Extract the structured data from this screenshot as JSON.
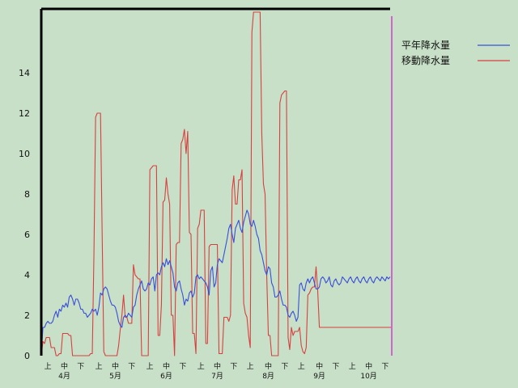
{
  "chart_data": {
    "type": "line",
    "title": "",
    "xlabel": "",
    "ylabel": "",
    "ylim": [
      0,
      16
    ],
    "yticks": [
      0,
      2,
      4,
      6,
      8,
      10,
      12,
      14
    ],
    "grid": false,
    "legend_position": "right",
    "colors": {
      "background": "#c8e0c8",
      "frame": "#000000",
      "marker": "#cc66cc"
    },
    "xticks": [
      {
        "label": "上",
        "i": 4
      },
      {
        "label": "中",
        "i": 14
      },
      {
        "label": "下",
        "i": 24
      },
      {
        "label": "上",
        "i": 35
      },
      {
        "label": "中",
        "i": 45
      },
      {
        "label": "下",
        "i": 55
      },
      {
        "label": "上",
        "i": 66
      },
      {
        "label": "中",
        "i": 76
      },
      {
        "label": "下",
        "i": 86
      },
      {
        "label": "上",
        "i": 97
      },
      {
        "label": "中",
        "i": 107
      },
      {
        "label": "下",
        "i": 117
      },
      {
        "label": "上",
        "i": 127
      },
      {
        "label": "中",
        "i": 138
      },
      {
        "label": "下",
        "i": 148
      },
      {
        "label": "上",
        "i": 158
      },
      {
        "label": "中",
        "i": 169
      },
      {
        "label": "下",
        "i": 179
      },
      {
        "label": "上",
        "i": 189
      },
      {
        "label": "中",
        "i": 199
      },
      {
        "label": "下",
        "i": 209
      }
    ],
    "months": [
      {
        "label": "4月",
        "i": 14
      },
      {
        "label": "5月",
        "i": 45
      },
      {
        "label": "6月",
        "i": 76
      },
      {
        "label": "7月",
        "i": 107
      },
      {
        "label": "8月",
        "i": 138
      },
      {
        "label": "9月",
        "i": 169
      },
      {
        "label": "10月",
        "i": 199
      }
    ],
    "current_index": 213,
    "series": [
      {
        "name": "平年降水量",
        "color": "#3a4fd8",
        "values": [
          0,
          1.4,
          1.4,
          1.6,
          1.7,
          1.6,
          1.6,
          1.7,
          2.0,
          2.2,
          1.9,
          2.3,
          2.2,
          2.5,
          2.4,
          2.6,
          2.4,
          2.9,
          3.0,
          2.8,
          2.5,
          2.8,
          2.8,
          2.6,
          2.3,
          2.3,
          2.1,
          2.1,
          1.9,
          2.0,
          2.1,
          2.3,
          2.2,
          2.3,
          2.0,
          2.4,
          3.1,
          3.0,
          3.3,
          3.4,
          3.3,
          3.0,
          2.7,
          2.5,
          2.5,
          2.4,
          2.1,
          1.7,
          1.5,
          1.4,
          1.9,
          2.0,
          1.9,
          2.1,
          2.0,
          1.9,
          2.4,
          2.5,
          3.0,
          3.3,
          3.5,
          3.7,
          3.3,
          3.2,
          3.3,
          3.6,
          3.5,
          3.8,
          3.9,
          3.2,
          4.0,
          4.1,
          4.0,
          4.4,
          4.6,
          4.4,
          4.8,
          4.5,
          4.7,
          4.4,
          4.1,
          3.4,
          3.2,
          3.6,
          3.7,
          3.3,
          3.0,
          2.5,
          2.8,
          2.7,
          3.1,
          3.2,
          2.9,
          3.1,
          3.9,
          4.0,
          3.8,
          3.9,
          3.8,
          3.7,
          3.6,
          3.4,
          3.0,
          4.2,
          4.4,
          3.4,
          3.6,
          4.5,
          4.8,
          4.7,
          4.6,
          5.0,
          5.4,
          5.8,
          6.3,
          6.5,
          6.0,
          5.6,
          6.3,
          6.5,
          6.7,
          6.3,
          6.1,
          6.6,
          6.9,
          7.2,
          7.0,
          6.5,
          6.4,
          6.7,
          6.4,
          6.0,
          5.8,
          5.2,
          5.0,
          4.6,
          4.2,
          4.0,
          4.4,
          4.3,
          3.6,
          3.4,
          2.9,
          2.9,
          3.0,
          3.2,
          2.8,
          2.5,
          2.5,
          2.4,
          2.0,
          1.9,
          2.1,
          2.2,
          2.0,
          1.7,
          1.9,
          3.5,
          3.6,
          3.3,
          3.2,
          3.6,
          3.8,
          3.6,
          3.8,
          3.9,
          3.6,
          3.3,
          3.3,
          3.4,
          3.8,
          3.9,
          3.8,
          3.6,
          3.7,
          3.9,
          3.5,
          3.4,
          3.7,
          3.8,
          3.6,
          3.5,
          3.6,
          3.9,
          3.8,
          3.7,
          3.6,
          3.8,
          3.9,
          3.7,
          3.6,
          3.8,
          3.9,
          3.7,
          3.6,
          3.8,
          3.9,
          3.7,
          3.6,
          3.8,
          3.9,
          3.7,
          3.6,
          3.8,
          3.9,
          3.8,
          3.7,
          3.9,
          3.8,
          3.7,
          3.9,
          3.8,
          3.9
        ]
      },
      {
        "name": "移動降水量",
        "color": "#d84040",
        "values": [
          0,
          0.7,
          0.6,
          0.9,
          0.9,
          0.9,
          0.4,
          0.4,
          0.4,
          0,
          0,
          0.1,
          0.1,
          1.1,
          1.1,
          1.1,
          1.1,
          1.0,
          1.0,
          0,
          0,
          0,
          0,
          0,
          0,
          0,
          0,
          0,
          0,
          0,
          0.1,
          0.1,
          5.0,
          11.8,
          12.0,
          12.0,
          12.0,
          6.0,
          0.2,
          0,
          0,
          0,
          0,
          0,
          0,
          0,
          0,
          0.5,
          1.3,
          2.0,
          3.0,
          1.9,
          1.9,
          1.6,
          1.6,
          1.6,
          4.5,
          4.0,
          3.9,
          3.8,
          3.8,
          0,
          0,
          0,
          0,
          0,
          9.2,
          9.3,
          9.4,
          9.4,
          9.4,
          1.0,
          1.0,
          2.5,
          7.6,
          7.7,
          8.8,
          8.0,
          7.5,
          2.0,
          2.0,
          0,
          5.5,
          5.6,
          5.6,
          10.5,
          10.7,
          11.2,
          10.0,
          11.1,
          6.1,
          6.0,
          1.1,
          1.1,
          0.1,
          6.3,
          6.5,
          7.2,
          7.2,
          7.2,
          0.6,
          0.6,
          5.4,
          5.5,
          5.5,
          5.5,
          5.5,
          5.5,
          0.1,
          0.1,
          0.1,
          1.9,
          1.9,
          1.9,
          1.7,
          2.0,
          8.2,
          8.9,
          7.5,
          7.5,
          8.7,
          8.7,
          9.2,
          2.6,
          2.1,
          1.9,
          1.0,
          0.4,
          16.0,
          17.0,
          17.0,
          17.0,
          17.0,
          17.0,
          11.0,
          8.5,
          8.0,
          4.0,
          1.0,
          1.0,
          0,
          0,
          0,
          0,
          0,
          12.5,
          12.9,
          13.0,
          13.1,
          13.1,
          0.9,
          0.3,
          1.4,
          1.0,
          1.2,
          1.2,
          1.2,
          1.4,
          0.5,
          0.2,
          0.1,
          0.4,
          3.0,
          3.1,
          3.3,
          3.4,
          3.4,
          4.4,
          3.2,
          1.4,
          1.4,
          1.4,
          1.4,
          1.4,
          1.4,
          1.4,
          1.4,
          1.4,
          1.4,
          1.4,
          1.4,
          1.4,
          1.4,
          1.4,
          1.4,
          1.4,
          1.4,
          1.4,
          1.4,
          1.4,
          1.4,
          1.4,
          1.4,
          1.4,
          1.4,
          1.4,
          1.4,
          1.4,
          1.4,
          1.4,
          1.4,
          1.4,
          1.4,
          1.4,
          1.4,
          1.4,
          1.4,
          1.4,
          1.4,
          1.4,
          1.4,
          1.4,
          1.4,
          1.4,
          1.4,
          1.4,
          1.4,
          1.4,
          1.4,
          1.4,
          1.4,
          1.4
        ]
      }
    ]
  }
}
